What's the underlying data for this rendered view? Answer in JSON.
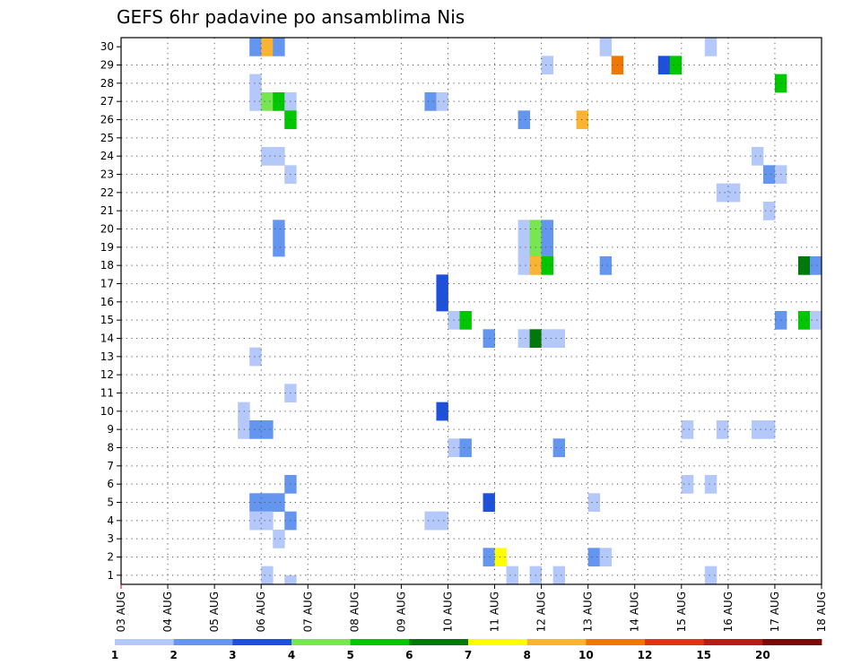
{
  "chart_data": {
    "type": "heatmap",
    "title": "GEFS 6hr padavine po ansamblima Nis",
    "xlabel": "",
    "ylabel": "",
    "x_ticks": [
      "03 AUG",
      "04 AUG",
      "05 AUG",
      "06 AUG",
      "07 AUG",
      "08 AUG",
      "09 AUG",
      "10 AUG",
      "11 AUG",
      "12 AUG",
      "13 AUG",
      "14 AUG",
      "15 AUG",
      "16 AUG",
      "17 AUG",
      "18 AUG"
    ],
    "y_ticks": [
      "1",
      "2",
      "3",
      "4",
      "5",
      "6",
      "7",
      "8",
      "9",
      "10",
      "11",
      "12",
      "13",
      "14",
      "15",
      "16",
      "17",
      "18",
      "19",
      "20",
      "21",
      "22",
      "23",
      "24",
      "25",
      "26",
      "27",
      "28",
      "29",
      "30"
    ],
    "xlim": [
      0,
      60
    ],
    "ylim": [
      0.5,
      30.5
    ],
    "grid": true,
    "x_unit": "6-hour step from 03 AUG 00Z",
    "colorbar": {
      "labels": [
        "1",
        "2",
        "3",
        "4",
        "5",
        "6",
        "7",
        "8",
        "10",
        "12",
        "15",
        "20"
      ],
      "colors": [
        "#b4c8fa",
        "#6496f0",
        "#1e50dc",
        "#78e650",
        "#00c800",
        "#00780a",
        "#ffff00",
        "#fab432",
        "#f07800",
        "#e63214",
        "#b41e14",
        "#780a0a"
      ]
    },
    "cells": [
      [
        11.5,
        30,
        2
      ],
      [
        12.5,
        30,
        8
      ],
      [
        13.5,
        30,
        2
      ],
      [
        41.5,
        30,
        1
      ],
      [
        50.5,
        30,
        1
      ],
      [
        36.5,
        29,
        1
      ],
      [
        42.5,
        29,
        9
      ],
      [
        46.5,
        29,
        3
      ],
      [
        47.5,
        29,
        5
      ],
      [
        11.5,
        28,
        1
      ],
      [
        56.5,
        28,
        5
      ],
      [
        11.5,
        27,
        1
      ],
      [
        12.5,
        27,
        4
      ],
      [
        13.5,
        27,
        5
      ],
      [
        14.5,
        27,
        1
      ],
      [
        26.5,
        27,
        2
      ],
      [
        27.5,
        27,
        1
      ],
      [
        14.5,
        26,
        5
      ],
      [
        34.5,
        26,
        2
      ],
      [
        39.5,
        26,
        8
      ],
      [
        12.5,
        24,
        1
      ],
      [
        13.5,
        24,
        1
      ],
      [
        54.5,
        24,
        1
      ],
      [
        14.5,
        23,
        1
      ],
      [
        55.5,
        23,
        2
      ],
      [
        56.5,
        23,
        1
      ],
      [
        51.5,
        22,
        1
      ],
      [
        52.5,
        22,
        1
      ],
      [
        55.5,
        21,
        1
      ],
      [
        13.5,
        20,
        2
      ],
      [
        34.5,
        20,
        1
      ],
      [
        35.5,
        20,
        4
      ],
      [
        36.5,
        20,
        2
      ],
      [
        13.5,
        19,
        2
      ],
      [
        34.5,
        19,
        1
      ],
      [
        35.5,
        19,
        4
      ],
      [
        36.5,
        19,
        2
      ],
      [
        34.5,
        18,
        1
      ],
      [
        35.5,
        18,
        8
      ],
      [
        36.5,
        18,
        5
      ],
      [
        41.5,
        18,
        2
      ],
      [
        58.5,
        18,
        6
      ],
      [
        59.5,
        18,
        2
      ],
      [
        27.5,
        17,
        3
      ],
      [
        27.5,
        16,
        3
      ],
      [
        28.5,
        15,
        1
      ],
      [
        29.5,
        15,
        5
      ],
      [
        56.5,
        15,
        2
      ],
      [
        58.5,
        15,
        5
      ],
      [
        59.5,
        15,
        1
      ],
      [
        31.5,
        14,
        2
      ],
      [
        34.5,
        14,
        1
      ],
      [
        35.5,
        14,
        6
      ],
      [
        36.5,
        14,
        1
      ],
      [
        37.5,
        14,
        1
      ],
      [
        11.5,
        13,
        1
      ],
      [
        14.5,
        11,
        1
      ],
      [
        10.5,
        10,
        1
      ],
      [
        27.5,
        10,
        3
      ],
      [
        10.5,
        9,
        1
      ],
      [
        11.5,
        9,
        2
      ],
      [
        12.5,
        9,
        2
      ],
      [
        48.5,
        9,
        1
      ],
      [
        51.5,
        9,
        1
      ],
      [
        54.5,
        9,
        1
      ],
      [
        55.5,
        9,
        1
      ],
      [
        28.5,
        8,
        1
      ],
      [
        29.5,
        8,
        2
      ],
      [
        37.5,
        8,
        2
      ],
      [
        14.5,
        6,
        2
      ],
      [
        48.5,
        6,
        1
      ],
      [
        50.5,
        6,
        1
      ],
      [
        11.5,
        5,
        2
      ],
      [
        12.5,
        5,
        2
      ],
      [
        13.5,
        5,
        2
      ],
      [
        31.5,
        5,
        3
      ],
      [
        40.5,
        5,
        1
      ],
      [
        11.5,
        4,
        1
      ],
      [
        12.5,
        4,
        1
      ],
      [
        14.5,
        4,
        2
      ],
      [
        26.5,
        4,
        1
      ],
      [
        27.5,
        4,
        1
      ],
      [
        13.5,
        3,
        1
      ],
      [
        31.5,
        2,
        2
      ],
      [
        32.5,
        2,
        7
      ],
      [
        40.5,
        2,
        2
      ],
      [
        41.5,
        2,
        1
      ],
      [
        12.5,
        1,
        1
      ],
      [
        33.5,
        1,
        1
      ],
      [
        35.5,
        1,
        1
      ],
      [
        37.5,
        1,
        1
      ],
      [
        50.5,
        1,
        1
      ],
      [
        14.5,
        0.5,
        1
      ]
    ]
  }
}
